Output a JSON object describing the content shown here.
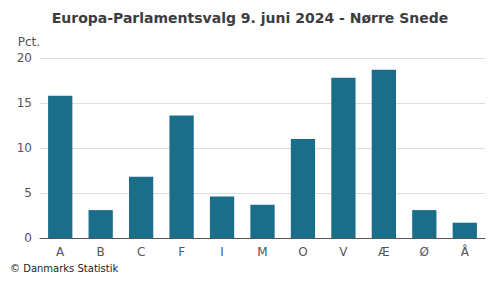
{
  "chart_data": {
    "type": "bar",
    "title": "Europa-Parlamentsvalg 9. juni 2024 - Nørre Snede",
    "ylabel": "Pct.",
    "footer": "© Danmarks Statistik",
    "categories": [
      "A",
      "B",
      "C",
      "F",
      "I",
      "M",
      "O",
      "V",
      "Æ",
      "Ø",
      "Å"
    ],
    "values": [
      15.8,
      3.1,
      6.8,
      13.6,
      4.6,
      3.7,
      11.0,
      17.8,
      18.7,
      3.1,
      1.7
    ],
    "color": "#1a6e8a",
    "ylim": [
      0,
      20
    ],
    "yticks": [
      0,
      5,
      10,
      15,
      20
    ],
    "grid": true
  }
}
